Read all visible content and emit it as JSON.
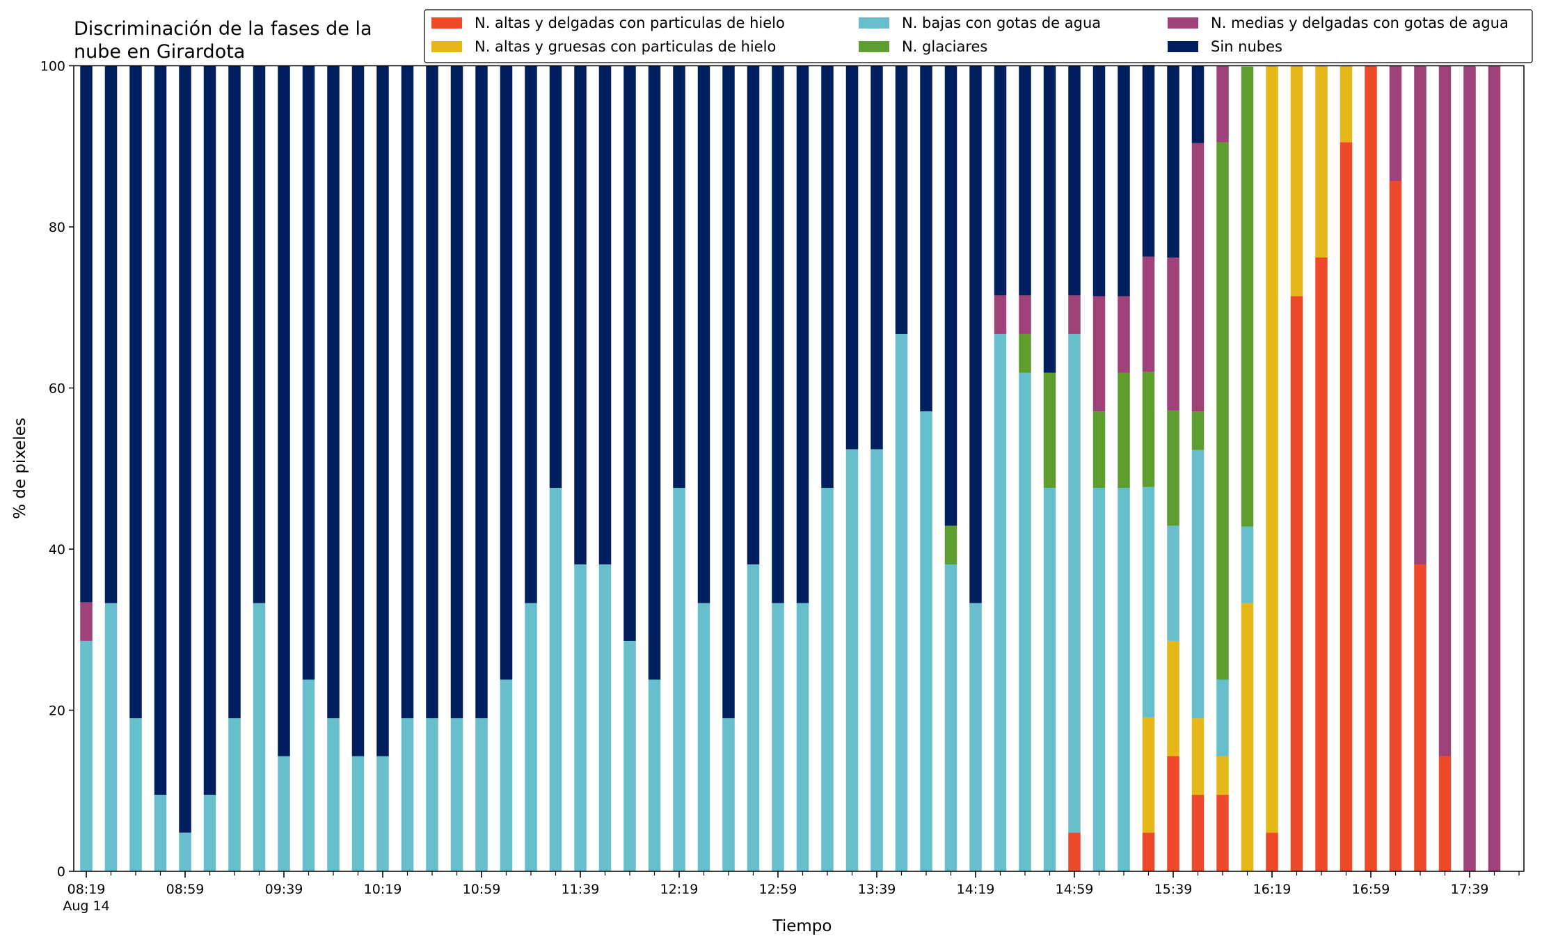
{
  "chart_data": {
    "type": "bar",
    "stacked": true,
    "title_lines": [
      "Discriminación de la fases de la",
      "nube en Girardota"
    ],
    "xlabel": "Tiempo",
    "ylabel": "% de pixeles",
    "ylim": [
      0,
      100
    ],
    "yticks": [
      0,
      20,
      40,
      60,
      80,
      100
    ],
    "grid": false,
    "legend_position": "top-right",
    "x_interval_minutes": 10,
    "categories": [
      "08:19",
      "08:29",
      "08:39",
      "08:49",
      "08:59",
      "09:09",
      "09:19",
      "09:29",
      "09:39",
      "09:49",
      "09:59",
      "10:09",
      "10:19",
      "10:29",
      "10:39",
      "10:49",
      "10:59",
      "11:09",
      "11:19",
      "11:29",
      "11:39",
      "11:49",
      "11:59",
      "12:09",
      "12:19",
      "12:29",
      "12:39",
      "12:49",
      "12:59",
      "13:09",
      "13:19",
      "13:29",
      "13:39",
      "13:49",
      "13:59",
      "14:09",
      "14:19",
      "14:29",
      "14:39",
      "14:49",
      "14:59",
      "15:09",
      "15:19",
      "15:29",
      "15:39",
      "15:49",
      "15:59",
      "16:09",
      "16:19",
      "16:29",
      "16:39",
      "16:49",
      "16:59",
      "17:09",
      "17:19",
      "17:29",
      "17:39",
      "17:49"
    ],
    "xtick_labels": [
      {
        "index": 0,
        "label": "08:19",
        "sublabel": "Aug 14"
      },
      {
        "index": 4,
        "label": "08:59"
      },
      {
        "index": 8,
        "label": "09:39"
      },
      {
        "index": 12,
        "label": "10:19"
      },
      {
        "index": 16,
        "label": "10:59"
      },
      {
        "index": 20,
        "label": "11:39"
      },
      {
        "index": 24,
        "label": "12:19"
      },
      {
        "index": 28,
        "label": "12:59"
      },
      {
        "index": 32,
        "label": "13:39"
      },
      {
        "index": 36,
        "label": "14:19"
      },
      {
        "index": 40,
        "label": "14:59"
      },
      {
        "index": 44,
        "label": "15:39"
      },
      {
        "index": 48,
        "label": "16:19"
      },
      {
        "index": 52,
        "label": "16:59"
      },
      {
        "index": 56,
        "label": "17:39"
      }
    ],
    "series": [
      {
        "name": "N. altas y delgadas con particulas de hielo",
        "color": "#ee4a2a",
        "values": [
          0,
          0,
          0,
          0,
          0,
          0,
          0,
          0,
          0,
          0,
          0,
          0,
          0,
          0,
          0,
          0,
          0,
          0,
          0,
          0,
          0,
          0,
          0,
          0,
          0,
          0,
          0,
          0,
          0,
          0,
          0,
          0,
          0,
          0,
          0,
          0,
          0,
          0,
          0,
          0,
          4.8,
          0,
          0,
          4.8,
          14.3,
          9.5,
          9.5,
          0,
          4.8,
          71.4,
          76.2,
          90.5,
          100,
          85.7,
          38.1,
          14.3,
          0,
          0
        ]
      },
      {
        "name": "N. altas y gruesas con particulas de hielo",
        "color": "#e6b718",
        "values": [
          0,
          0,
          0,
          0,
          0,
          0,
          0,
          0,
          0,
          0,
          0,
          0,
          0,
          0,
          0,
          0,
          0,
          0,
          0,
          0,
          0,
          0,
          0,
          0,
          0,
          0,
          0,
          0,
          0,
          0,
          0,
          0,
          0,
          0,
          0,
          0,
          0,
          0,
          0,
          0,
          0,
          0,
          0,
          14.3,
          14.3,
          9.5,
          4.8,
          33.3,
          95.2,
          28.6,
          23.8,
          9.5,
          0,
          0,
          0,
          0,
          0,
          0
        ]
      },
      {
        "name": "N. bajas con gotas de agua",
        "color": "#66bfca",
        "values": [
          28.6,
          33.3,
          19.0,
          9.5,
          4.8,
          9.5,
          19.0,
          33.3,
          14.3,
          23.8,
          19.0,
          14.3,
          14.3,
          19.0,
          19.0,
          19.0,
          19.0,
          23.8,
          33.3,
          47.6,
          38.1,
          38.1,
          28.6,
          23.8,
          47.6,
          33.3,
          19.0,
          38.1,
          33.3,
          33.3,
          47.6,
          52.4,
          52.4,
          66.7,
          57.1,
          38.1,
          33.3,
          66.7,
          61.9,
          47.6,
          61.9,
          47.6,
          47.6,
          28.6,
          14.3,
          33.3,
          9.5,
          9.5,
          0,
          0,
          0,
          0,
          0,
          0,
          0,
          0,
          0,
          0
        ]
      },
      {
        "name": "N. glaciares",
        "color": "#5e9e2f",
        "values": [
          0,
          0,
          0,
          0,
          0,
          0,
          0,
          0,
          0,
          0,
          0,
          0,
          0,
          0,
          0,
          0,
          0,
          0,
          0,
          0,
          0,
          0,
          0,
          0,
          0,
          0,
          0,
          0,
          0,
          0,
          0,
          0,
          0,
          0,
          0,
          4.8,
          0,
          0,
          4.8,
          14.3,
          0,
          9.5,
          14.3,
          14.3,
          14.3,
          4.8,
          66.7,
          57.1,
          0,
          0,
          0,
          0,
          0,
          0,
          0,
          0,
          0,
          0
        ]
      },
      {
        "name": "N. medias y delgadas con gotas de agua",
        "color": "#9e4279",
        "values": [
          4.8,
          0,
          0,
          0,
          0,
          0,
          0,
          0,
          0,
          0,
          0,
          0,
          0,
          0,
          0,
          0,
          0,
          0,
          0,
          0,
          0,
          0,
          0,
          0,
          0,
          0,
          0,
          0,
          0,
          0,
          0,
          0,
          0,
          0,
          0,
          0,
          0,
          4.8,
          4.8,
          0,
          4.8,
          14.3,
          9.5,
          14.3,
          19.0,
          33.3,
          9.5,
          0,
          0,
          0,
          0,
          0,
          0,
          14.3,
          61.9,
          85.7,
          100,
          100
        ]
      },
      {
        "name": "Sin nubes",
        "color": "#001f5e",
        "values": [
          66.6,
          66.7,
          81.0,
          90.5,
          95.2,
          90.5,
          81.0,
          66.7,
          85.7,
          76.2,
          81.0,
          85.7,
          85.7,
          81.0,
          81.0,
          81.0,
          81.0,
          76.2,
          66.7,
          52.4,
          61.9,
          61.9,
          71.4,
          76.2,
          52.4,
          66.7,
          81.0,
          61.9,
          66.7,
          66.7,
          52.4,
          47.6,
          47.6,
          33.3,
          42.9,
          57.1,
          66.7,
          28.5,
          28.5,
          38.1,
          28.5,
          28.6,
          28.6,
          23.8,
          23.8,
          9.6,
          0,
          0,
          0,
          0,
          0,
          0,
          0,
          0,
          0,
          0,
          0,
          0
        ]
      }
    ]
  }
}
